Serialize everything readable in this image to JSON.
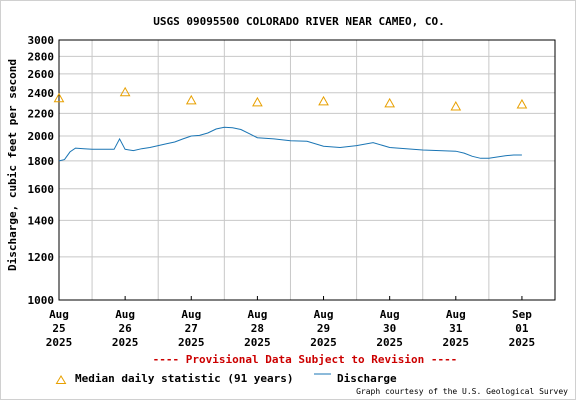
{
  "chart_data": {
    "type": "line",
    "title": "USGS 09095500 COLORADO RIVER NEAR CAMEO, CO.",
    "ylabel": "Discharge, cubic feet per second",
    "yscale": "log",
    "ylim": [
      1000,
      3000
    ],
    "yticks": [
      1000,
      1200,
      1400,
      1600,
      1800,
      2000,
      2200,
      2400,
      2600,
      2800,
      3000
    ],
    "xlim": [
      "2025-08-25T00:00",
      "2025-09-01T12:00"
    ],
    "xticks": [
      {
        "date": "2025-08-25",
        "lines": [
          "Aug",
          "25",
          "2025"
        ]
      },
      {
        "date": "2025-08-26",
        "lines": [
          "Aug",
          "26",
          "2025"
        ]
      },
      {
        "date": "2025-08-27",
        "lines": [
          "Aug",
          "27",
          "2025"
        ]
      },
      {
        "date": "2025-08-28",
        "lines": [
          "Aug",
          "28",
          "2025"
        ]
      },
      {
        "date": "2025-08-29",
        "lines": [
          "Aug",
          "29",
          "2025"
        ]
      },
      {
        "date": "2025-08-30",
        "lines": [
          "Aug",
          "30",
          "2025"
        ]
      },
      {
        "date": "2025-08-31",
        "lines": [
          "Aug",
          "31",
          "2025"
        ]
      },
      {
        "date": "2025-09-01",
        "lines": [
          "Sep",
          "01",
          "2025"
        ]
      }
    ],
    "grid": true,
    "series": [
      {
        "name": "Discharge",
        "kind": "line",
        "color": "#1a75b4",
        "x": [
          "2025-08-25T00:00",
          "2025-08-25T02:00",
          "2025-08-25T04:00",
          "2025-08-25T06:00",
          "2025-08-25T09:00",
          "2025-08-25T12:00",
          "2025-08-25T15:00",
          "2025-08-25T18:00",
          "2025-08-25T20:00",
          "2025-08-25T22:00",
          "2025-08-26T00:00",
          "2025-08-26T03:00",
          "2025-08-26T06:00",
          "2025-08-26T09:00",
          "2025-08-26T12:00",
          "2025-08-26T15:00",
          "2025-08-26T18:00",
          "2025-08-26T21:00",
          "2025-08-27T00:00",
          "2025-08-27T03:00",
          "2025-08-27T06:00",
          "2025-08-27T09:00",
          "2025-08-27T12:00",
          "2025-08-27T15:00",
          "2025-08-27T18:00",
          "2025-08-27T21:00",
          "2025-08-28T00:00",
          "2025-08-28T06:00",
          "2025-08-28T12:00",
          "2025-08-28T18:00",
          "2025-08-29T00:00",
          "2025-08-29T06:00",
          "2025-08-29T12:00",
          "2025-08-29T18:00",
          "2025-08-30T00:00",
          "2025-08-30T06:00",
          "2025-08-30T12:00",
          "2025-08-30T18:00",
          "2025-08-31T00:00",
          "2025-08-31T03:00",
          "2025-08-31T06:00",
          "2025-08-31T09:00",
          "2025-08-31T12:00",
          "2025-08-31T15:00",
          "2025-08-31T18:00",
          "2025-08-31T21:00",
          "2025-09-01T00:00"
        ],
        "y": [
          1800,
          1810,
          1870,
          1900,
          1895,
          1890,
          1890,
          1890,
          1890,
          1975,
          1890,
          1880,
          1895,
          1905,
          1920,
          1935,
          1950,
          1975,
          2000,
          2005,
          2025,
          2060,
          2075,
          2070,
          2055,
          2020,
          1985,
          1975,
          1960,
          1955,
          1915,
          1905,
          1920,
          1945,
          1905,
          1895,
          1885,
          1880,
          1875,
          1860,
          1835,
          1820,
          1820,
          1830,
          1840,
          1845,
          1845
        ]
      },
      {
        "name": "Median daily statistic (91 years)",
        "kind": "marker",
        "marker": "triangle",
        "color": "#e8a000",
        "x": [
          "2025-08-25T00:00",
          "2025-08-26T00:00",
          "2025-08-27T00:00",
          "2025-08-28T00:00",
          "2025-08-29T00:00",
          "2025-08-30T00:00",
          "2025-08-31T00:00",
          "2025-09-01T00:00"
        ],
        "y": [
          2340,
          2400,
          2320,
          2300,
          2310,
          2290,
          2260,
          2280
        ]
      }
    ],
    "legend": {
      "position": "bottom-left",
      "median_label": "Median daily statistic (91 years)",
      "discharge_label": "Discharge"
    },
    "annotation": "---- Provisional Data Subject to Revision ----",
    "credit": "Graph courtesy of the U.S. Geological Survey"
  }
}
